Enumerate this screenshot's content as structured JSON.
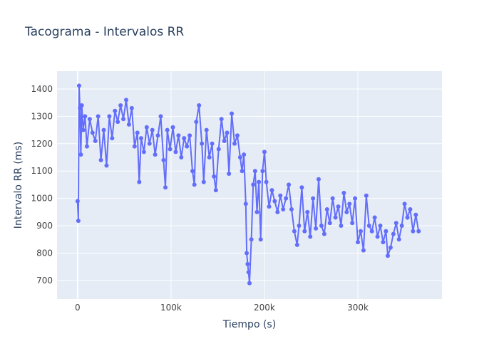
{
  "chart_data": {
    "type": "line",
    "title": "Tacograma - Intervalos RR",
    "xlabel": "Tiempo (s)",
    "ylabel": "Intervalo RR (ms)",
    "x": [
      0,
      800,
      1600,
      2500,
      3500,
      4500,
      6000,
      8000,
      10000,
      13000,
      16000,
      19000,
      22000,
      25000,
      28000,
      31000,
      34000,
      37000,
      40000,
      43000,
      46000,
      49000,
      52000,
      55000,
      58000,
      61000,
      64000,
      66000,
      68000,
      71000,
      74000,
      77000,
      80000,
      83000,
      86000,
      89000,
      92000,
      94000,
      96000,
      99000,
      102000,
      105000,
      108000,
      111000,
      114000,
      117000,
      120000,
      123000,
      125000,
      127000,
      130000,
      133000,
      135000,
      138000,
      141000,
      144000,
      146000,
      148000,
      151000,
      154000,
      157000,
      160000,
      162000,
      165000,
      168000,
      171000,
      174000,
      176000,
      178000,
      180000,
      181000,
      182000,
      183000,
      184000,
      186000,
      188000,
      190000,
      192000,
      194000,
      196000,
      198000,
      200000,
      202000,
      205000,
      208000,
      211000,
      214000,
      217000,
      220000,
      223000,
      226000,
      229000,
      232000,
      235000,
      237000,
      240000,
      243000,
      246000,
      249000,
      252000,
      255000,
      258000,
      261000,
      264000,
      267000,
      270000,
      273000,
      276000,
      279000,
      282000,
      285000,
      288000,
      291000,
      294000,
      297000,
      300000,
      303000,
      306000,
      309000,
      312000,
      315000,
      318000,
      321000,
      324000,
      327000,
      330000,
      332000,
      335000,
      338000,
      341000,
      344000,
      347000,
      350000,
      353000,
      356000,
      359000,
      362000,
      365000
    ],
    "series": [
      {
        "name": "RR",
        "color": "#636efa",
        "values": [
          990,
          918,
          1412,
          1330,
          1160,
          1340,
          1250,
          1300,
          1190,
          1290,
          1240,
          1210,
          1300,
          1140,
          1250,
          1120,
          1300,
          1220,
          1320,
          1280,
          1340,
          1290,
          1360,
          1270,
          1330,
          1190,
          1240,
          1060,
          1220,
          1170,
          1260,
          1200,
          1250,
          1160,
          1230,
          1300,
          1140,
          1040,
          1250,
          1180,
          1260,
          1170,
          1230,
          1150,
          1220,
          1190,
          1230,
          1100,
          1050,
          1280,
          1340,
          1200,
          1060,
          1250,
          1150,
          1200,
          1080,
          1030,
          1180,
          1290,
          1210,
          1240,
          1090,
          1310,
          1200,
          1230,
          1150,
          1100,
          1160,
          980,
          800,
          760,
          730,
          690,
          850,
          1050,
          1100,
          950,
          1060,
          850,
          1100,
          1170,
          1060,
          970,
          1030,
          990,
          950,
          1010,
          960,
          1000,
          1050,
          960,
          880,
          830,
          900,
          1040,
          880,
          950,
          860,
          1000,
          890,
          1070,
          900,
          870,
          960,
          910,
          1000,
          930,
          970,
          900,
          1020,
          950,
          980,
          910,
          1000,
          840,
          880,
          810,
          1010,
          900,
          880,
          930,
          860,
          900,
          840,
          880,
          790,
          820,
          870,
          910,
          850,
          900,
          980,
          930,
          960,
          880,
          940,
          880
        ]
      }
    ],
    "xlim": [
      -22000,
      390000
    ],
    "ylim": [
      632,
      1465
    ],
    "xticks": [
      0,
      {
        "value": 100000,
        "label": "100k"
      },
      {
        "value": 200000,
        "label": "200k"
      },
      {
        "value": 300000,
        "label": "300k"
      }
    ],
    "yticks": [
      700,
      800,
      900,
      1000,
      1100,
      1200,
      1300,
      1400
    ],
    "grid": true
  }
}
